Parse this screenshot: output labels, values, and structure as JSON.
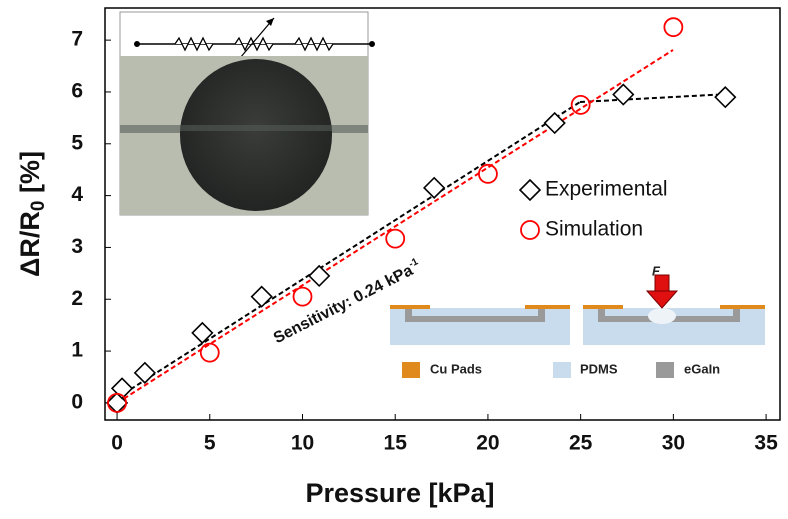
{
  "chart_data": {
    "type": "scatter",
    "y_label": {
      "main": "ΔR/R",
      "sub": "0",
      "unit": " [%]"
    },
    "x_label": "Pressure [kPa]",
    "xlim": [
      -0.65,
      35.75
    ],
    "ylim": [
      -0.33,
      7.62
    ],
    "xticks": [
      0,
      5,
      10,
      15,
      20,
      25,
      30,
      35
    ],
    "yticks": [
      0,
      1,
      2,
      3,
      4,
      5,
      6,
      7
    ],
    "series": [
      {
        "name": "Experimental",
        "color": "#000000",
        "marker": "diamond",
        "x": [
          0,
          0.27,
          1.5,
          4.6,
          7.8,
          10.9,
          17.1,
          23.6,
          27.3,
          32.8
        ],
        "values": [
          0,
          0.28,
          0.58,
          1.35,
          2.05,
          2.45,
          4.15,
          5.4,
          5.95,
          5.9
        ]
      },
      {
        "name": "Simulation",
        "color": "#ff0000",
        "marker": "circle",
        "x": [
          0,
          5,
          10,
          15,
          20,
          25,
          30
        ],
        "values": [
          0,
          0.97,
          2.05,
          3.17,
          4.42,
          5.75,
          7.25
        ]
      }
    ],
    "annotation": {
      "text": "Sensitivity: 0.24 kPa",
      "superscript": "-1"
    },
    "inset_labels": {
      "force": "F",
      "pads": "Cu Pads",
      "pdms": "PDMS",
      "egain": "eGaIn"
    }
  }
}
